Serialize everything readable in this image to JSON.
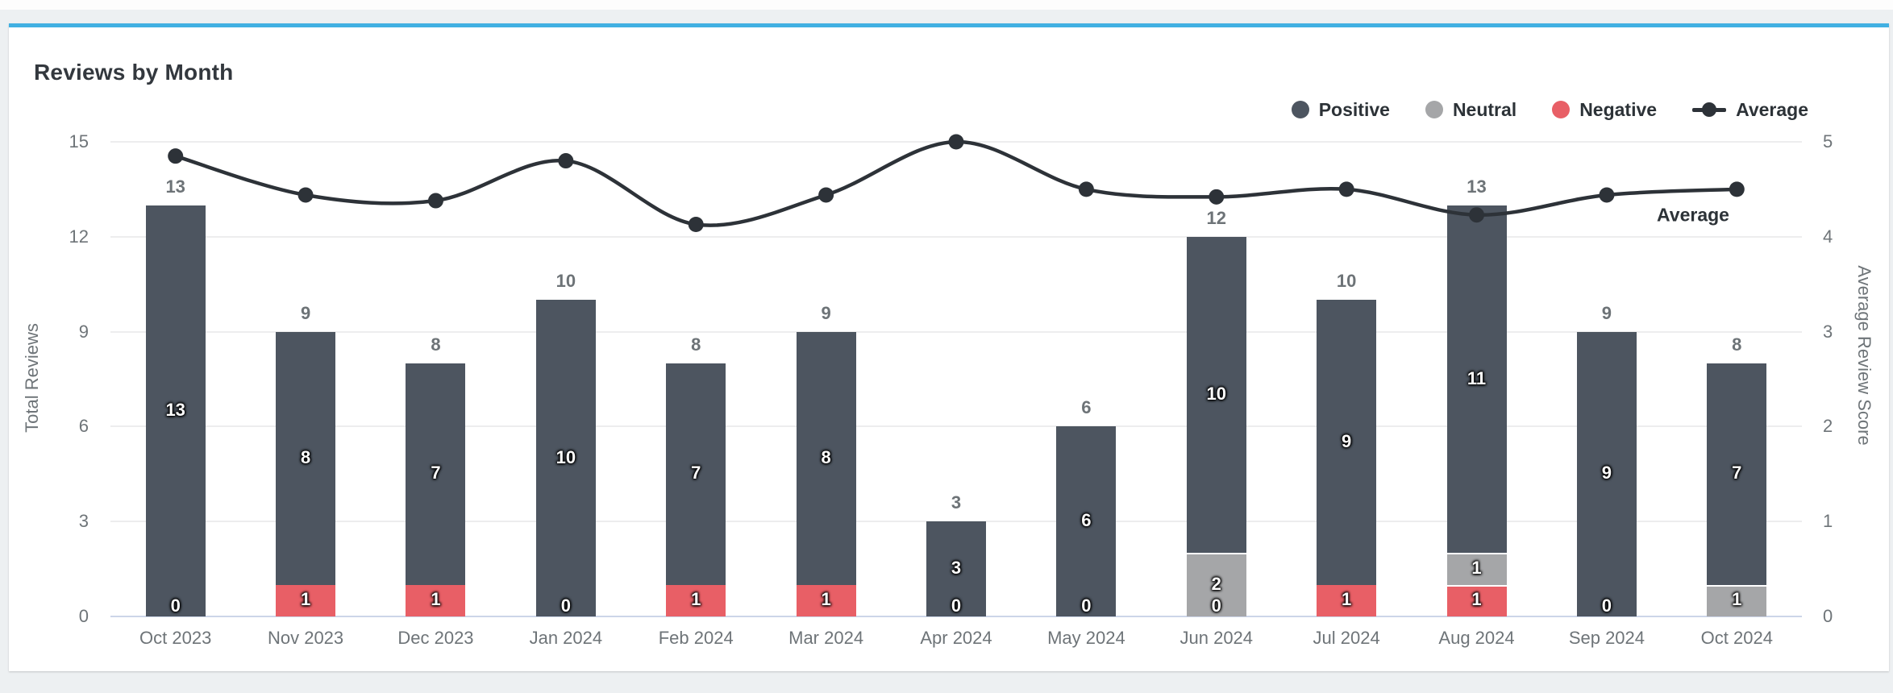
{
  "card": {
    "title": "Reviews by Month"
  },
  "legend": {
    "items": [
      {
        "label": "Positive",
        "color": "#4d5560",
        "marker": "circle"
      },
      {
        "label": "Neutral",
        "color": "#a5a6a8",
        "marker": "circle"
      },
      {
        "label": "Negative",
        "color": "#e85f66",
        "marker": "circle"
      },
      {
        "label": "Average",
        "color": "#2d3238",
        "marker": "line-dot"
      }
    ]
  },
  "colors": {
    "accent_top_border": "#41b0e2",
    "positive": "#4d5560",
    "neutral": "#a5a6a8",
    "negative": "#e85f66",
    "average_line": "#2d3238",
    "grid": "#ededee",
    "baseline": "#ccd5e8",
    "axis_text": "#6e7478"
  },
  "chart_data": {
    "type": "bar",
    "subtype": "stacked-bars-with-line",
    "title": "Reviews by Month",
    "categories": [
      "Oct 2023",
      "Nov 2023",
      "Dec 2023",
      "Jan 2024",
      "Feb 2024",
      "Mar 2024",
      "Apr 2024",
      "May 2024",
      "Jun 2024",
      "Jul 2024",
      "Aug 2024",
      "Sep 2024",
      "Oct 2024"
    ],
    "series": [
      {
        "name": "Positive",
        "color": "#4d5560",
        "values": [
          13,
          8,
          7,
          10,
          7,
          8,
          3,
          6,
          10,
          9,
          11,
          9,
          7
        ]
      },
      {
        "name": "Neutral",
        "color": "#a5a6a8",
        "values": [
          0,
          0,
          0,
          0,
          0,
          0,
          0,
          0,
          2,
          0,
          1,
          0,
          1
        ]
      },
      {
        "name": "Negative",
        "color": "#e85f66",
        "values": [
          0,
          1,
          1,
          0,
          1,
          1,
          0,
          0,
          0,
          1,
          1,
          0,
          0
        ]
      }
    ],
    "bar_totals": [
      13,
      9,
      8,
      10,
      8,
      9,
      3,
      6,
      12,
      10,
      13,
      9,
      8
    ],
    "line_series": {
      "name": "Average",
      "color": "#2d3238",
      "axis": "right",
      "values": [
        4.85,
        4.44,
        4.38,
        4.8,
        4.13,
        4.44,
        5.0,
        4.5,
        4.42,
        4.5,
        4.23,
        4.44,
        4.5
      ]
    },
    "zero_negative_label_shown": [
      true,
      false,
      false,
      true,
      false,
      false,
      true,
      true,
      true,
      false,
      false,
      true,
      false
    ],
    "line_annotation": "Average",
    "y_left": {
      "label": "Total Reviews",
      "ticks": [
        0,
        3,
        6,
        9,
        12,
        15
      ],
      "min": 0,
      "max": 15
    },
    "y_right": {
      "label": "Average Review Score",
      "ticks": [
        0,
        1,
        2,
        3,
        4,
        5
      ],
      "min": 0,
      "max": 5
    },
    "legend_position": "top-right",
    "grid": true
  }
}
